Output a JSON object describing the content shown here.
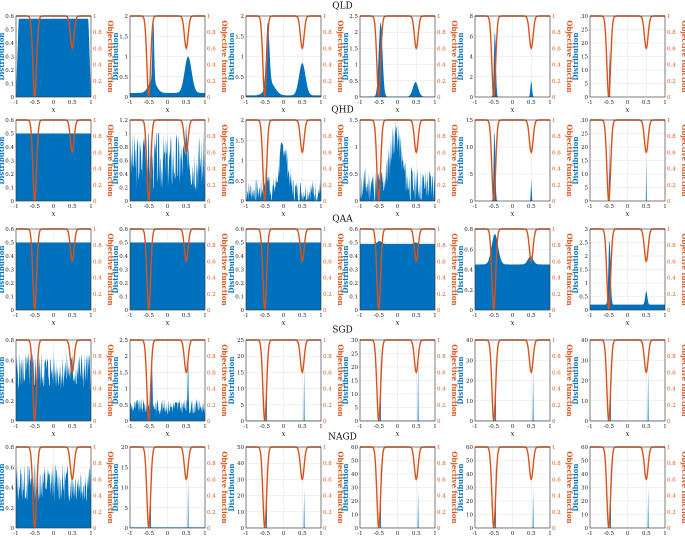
{
  "figure": {
    "left_axis_label": "Distribution",
    "right_axis_label": "Objective function",
    "x_axis_label": "x",
    "x_ticks": [
      "-1",
      "-0.5",
      "0",
      "0.5",
      "1"
    ],
    "right_ticks": [
      "0",
      "0.2",
      "0.4",
      "0.6",
      "0.8",
      "1"
    ],
    "colors": {
      "distribution": "#0072bd",
      "objective": "#d95319",
      "grid": "#e3e3e3"
    }
  },
  "chart_data": {
    "type": "area",
    "xlim": [
      -1,
      1
    ],
    "objective": {
      "description": "double-well objective, min 0 at x=-0.5, local min ~0.6 at x=0.5, ~1 elsewhere",
      "ylim": [
        0,
        1
      ],
      "well_centers": [
        -0.5,
        0.5
      ],
      "well_depths": [
        1.0,
        0.4
      ],
      "well_width": 0.07
    },
    "rows": [
      {
        "label": "QLD",
        "panels": [
          {
            "ylim": [
              0,
              0.6
            ],
            "yticks": [
              "0",
              "0.1",
              "0.2",
              "0.3",
              "0.4",
              "0.5",
              "0.6"
            ],
            "kind": "flat",
            "level": 0.58,
            "edge": 0.07
          },
          {
            "ylim": [
              0,
              2
            ],
            "yticks": [
              "0",
              "0.5",
              "1",
              "1.5",
              "2"
            ],
            "kind": "peaks",
            "base": 0.1,
            "peaks": [
              [
                -0.38,
                1.6,
                0.03
              ],
              [
                -0.4,
                0.3,
                0.15
              ],
              [
                0.55,
                0.9,
                0.13
              ]
            ]
          },
          {
            "ylim": [
              0,
              2
            ],
            "yticks": [
              "0",
              "0.5",
              "1",
              "1.5",
              "2"
            ],
            "kind": "peaks",
            "base": 0.04,
            "peaks": [
              [
                -0.42,
                1.55,
                0.06
              ],
              [
                -0.35,
                0.3,
                0.18
              ],
              [
                0.5,
                0.8,
                0.12
              ]
            ]
          },
          {
            "ylim": [
              0,
              2.5
            ],
            "yticks": [
              "0",
              "0.5",
              "1",
              "1.5",
              "2",
              "2.5"
            ],
            "kind": "peaks",
            "base": 0.01,
            "peaks": [
              [
                -0.45,
                2.3,
                0.07
              ],
              [
                0.48,
                0.45,
                0.1
              ]
            ]
          },
          {
            "ylim": [
              0,
              8
            ],
            "yticks": [
              "0",
              "2",
              "4",
              "6",
              "8"
            ],
            "kind": "peaks",
            "base": 0,
            "peaks": [
              [
                -0.47,
                6.5,
                0.035
              ],
              [
                0.5,
                1.6,
                0.03
              ]
            ]
          },
          {
            "ylim": [
              0,
              30
            ],
            "yticks": [
              "0",
              "5",
              "10",
              "15",
              "20",
              "25",
              "30"
            ],
            "kind": "peaks",
            "base": 0,
            "peaks": [
              [
                -0.48,
                27,
                0.008
              ]
            ]
          }
        ]
      },
      {
        "label": "QHD",
        "panels": [
          {
            "ylim": [
              0,
              0.6
            ],
            "yticks": [
              "0",
              "0.1",
              "0.2",
              "0.3",
              "0.4",
              "0.5",
              "0.6"
            ],
            "kind": "flat",
            "level": 0.5,
            "edge": 0
          },
          {
            "ylim": [
              0,
              1.2
            ],
            "yticks": [
              "0",
              "0.2",
              "0.4",
              "0.6",
              "0.8",
              "1",
              "1.2"
            ],
            "kind": "noisy",
            "base": 0.6,
            "amp": 0.45,
            "seed": 3,
            "peaks": [
              [
                -0.6,
                0.4,
                0.05
              ],
              [
                0.55,
                0.3,
                0.05
              ]
            ]
          },
          {
            "ylim": [
              0,
              2
            ],
            "yticks": [
              "0",
              "0.5",
              "1",
              "1.5",
              "2"
            ],
            "kind": "noisy",
            "base": 0.25,
            "amp": 0.3,
            "seed": 7,
            "peaks": [
              [
                0.0,
                1.1,
                0.15
              ],
              [
                -0.45,
                0.4,
                0.08
              ]
            ]
          },
          {
            "ylim": [
              0,
              1.5
            ],
            "yticks": [
              "0",
              "0.5",
              "1",
              "1.5"
            ],
            "kind": "noisy",
            "base": 0.3,
            "amp": 0.35,
            "seed": 11,
            "peaks": [
              [
                -0.05,
                0.95,
                0.2
              ]
            ]
          },
          {
            "ylim": [
              0,
              15
            ],
            "yticks": [
              "0",
              "5",
              "10",
              "15"
            ],
            "kind": "peaks",
            "base": 0,
            "peaks": [
              [
                -0.48,
                13,
                0.03
              ],
              [
                0.5,
                4,
                0.015
              ]
            ]
          },
          {
            "ylim": [
              0,
              30
            ],
            "yticks": [
              "0",
              "5",
              "10",
              "15",
              "20",
              "25",
              "30"
            ],
            "kind": "peaks",
            "base": 0,
            "peaks": [
              [
                -0.49,
                29,
                0.006
              ],
              [
                0.5,
                16,
                0.004
              ]
            ]
          }
        ]
      },
      {
        "label": "QAA",
        "panels": [
          {
            "ylim": [
              0,
              0.6
            ],
            "yticks": [
              "0",
              "0.1",
              "0.2",
              "0.3",
              "0.4",
              "0.5",
              "0.6"
            ],
            "kind": "flat",
            "level": 0.5,
            "edge": 0
          },
          {
            "ylim": [
              0,
              0.6
            ],
            "yticks": [
              "0",
              "0.1",
              "0.2",
              "0.3",
              "0.4",
              "0.5",
              "0.6"
            ],
            "kind": "flat",
            "level": 0.5,
            "edge": 0
          },
          {
            "ylim": [
              0,
              0.6
            ],
            "yticks": [
              "0",
              "0.1",
              "0.2",
              "0.3",
              "0.4",
              "0.5",
              "0.6"
            ],
            "kind": "flat",
            "level": 0.5,
            "edge": 0
          },
          {
            "ylim": [
              0,
              0.6
            ],
            "yticks": [
              "0",
              "0.1",
              "0.2",
              "0.3",
              "0.4",
              "0.5",
              "0.6"
            ],
            "kind": "peaks",
            "base": 0.49,
            "peaks": [
              [
                -0.48,
                0.02,
                0.08
              ],
              [
                0.48,
                0.01,
                0.06
              ]
            ]
          },
          {
            "ylim": [
              0,
              0.8
            ],
            "yticks": [
              "0",
              "0.2",
              "0.4",
              "0.6",
              "0.8"
            ],
            "kind": "peaks",
            "base": 0.45,
            "peaks": [
              [
                -0.47,
                0.3,
                0.12
              ],
              [
                0.48,
                0.08,
                0.1
              ]
            ]
          },
          {
            "ylim": [
              0,
              3
            ],
            "yticks": [
              "0",
              "0.5",
              "1",
              "1.5",
              "2",
              "2.5",
              "3"
            ],
            "kind": "peaks",
            "base": 0.2,
            "peaks": [
              [
                -0.48,
                2.4,
                0.04
              ],
              [
                0.5,
                0.5,
                0.04
              ]
            ]
          }
        ]
      },
      {
        "label": "SGD",
        "panels": [
          {
            "ylim": [
              0,
              0.8
            ],
            "yticks": [
              "0",
              "0.2",
              "0.4",
              "0.6",
              "0.8"
            ],
            "kind": "noisy",
            "base": 0.5,
            "amp": 0.2,
            "seed": 5,
            "peaks": []
          },
          {
            "ylim": [
              0,
              2.5
            ],
            "yticks": [
              "0",
              "0.5",
              "1",
              "1.5",
              "2",
              "2.5"
            ],
            "kind": "noisy",
            "base": 0.45,
            "amp": 0.25,
            "seed": 9,
            "peaks": [
              [
                -0.42,
                1.5,
                0.02
              ],
              [
                0.55,
                1.9,
                0.012
              ]
            ]
          },
          {
            "ylim": [
              0,
              25
            ],
            "yticks": [
              "0",
              "5",
              "10",
              "15",
              "20",
              "25"
            ],
            "kind": "peaks",
            "base": 0.1,
            "peaks": [
              [
                -0.45,
                21,
                0.004
              ],
              [
                0.55,
                17,
                0.004
              ]
            ]
          },
          {
            "ylim": [
              0,
              30
            ],
            "yticks": [
              "0",
              "5",
              "10",
              "15",
              "20",
              "25",
              "30"
            ],
            "kind": "peaks",
            "base": 0.1,
            "peaks": [
              [
                -0.45,
                28,
                0.004
              ],
              [
                0.55,
                24,
                0.004
              ]
            ]
          },
          {
            "ylim": [
              0,
              40
            ],
            "yticks": [
              "0",
              "10",
              "20",
              "30",
              "40"
            ],
            "kind": "peaks",
            "base": 0.1,
            "peaks": [
              [
                -0.45,
                33,
                0.004
              ],
              [
                0.55,
                26,
                0.004
              ]
            ]
          },
          {
            "ylim": [
              0,
              40
            ],
            "yticks": [
              "0",
              "10",
              "20",
              "30",
              "40"
            ],
            "kind": "peaks",
            "base": 0.1,
            "peaks": [
              [
                -0.45,
                33,
                0.004
              ],
              [
                0.55,
                26,
                0.004
              ]
            ]
          }
        ]
      },
      {
        "label": "NAGD",
        "panels": [
          {
            "ylim": [
              0,
              0.8
            ],
            "yticks": [
              "0",
              "0.2",
              "0.4",
              "0.6",
              "0.8"
            ],
            "kind": "noisy",
            "base": 0.45,
            "amp": 0.2,
            "seed": 13,
            "peaks": []
          },
          {
            "ylim": [
              0,
              20
            ],
            "yticks": [
              "0",
              "5",
              "10",
              "15",
              "20"
            ],
            "kind": "peaks",
            "base": 0.15,
            "peaks": [
              [
                -0.45,
                16,
                0.004
              ],
              [
                0.55,
                12,
                0.004
              ]
            ]
          },
          {
            "ylim": [
              0,
              50
            ],
            "yticks": [
              "0",
              "10",
              "20",
              "30",
              "40",
              "50"
            ],
            "kind": "peaks",
            "base": 0.1,
            "peaks": [
              [
                -0.45,
                40,
                0.004
              ],
              [
                0.55,
                24,
                0.004
              ]
            ]
          },
          {
            "ylim": [
              0,
              60
            ],
            "yticks": [
              "0",
              "10",
              "20",
              "30",
              "40",
              "50",
              "60"
            ],
            "kind": "peaks",
            "base": 0.1,
            "peaks": [
              [
                -0.45,
                52,
                0.004
              ],
              [
                0.55,
                28,
                0.004
              ]
            ]
          },
          {
            "ylim": [
              0,
              60
            ],
            "yticks": [
              "0",
              "10",
              "20",
              "30",
              "40",
              "50",
              "60"
            ],
            "kind": "peaks",
            "base": 0.1,
            "peaks": [
              [
                -0.45,
                52,
                0.004
              ],
              [
                0.55,
                30,
                0.004
              ]
            ]
          },
          {
            "ylim": [
              0,
              60
            ],
            "yticks": [
              "0",
              "10",
              "20",
              "30",
              "40",
              "50",
              "60"
            ],
            "kind": "peaks",
            "base": 0.1,
            "peaks": [
              [
                -0.45,
                52,
                0.004
              ],
              [
                0.55,
                30,
                0.004
              ]
            ]
          }
        ]
      }
    ]
  }
}
